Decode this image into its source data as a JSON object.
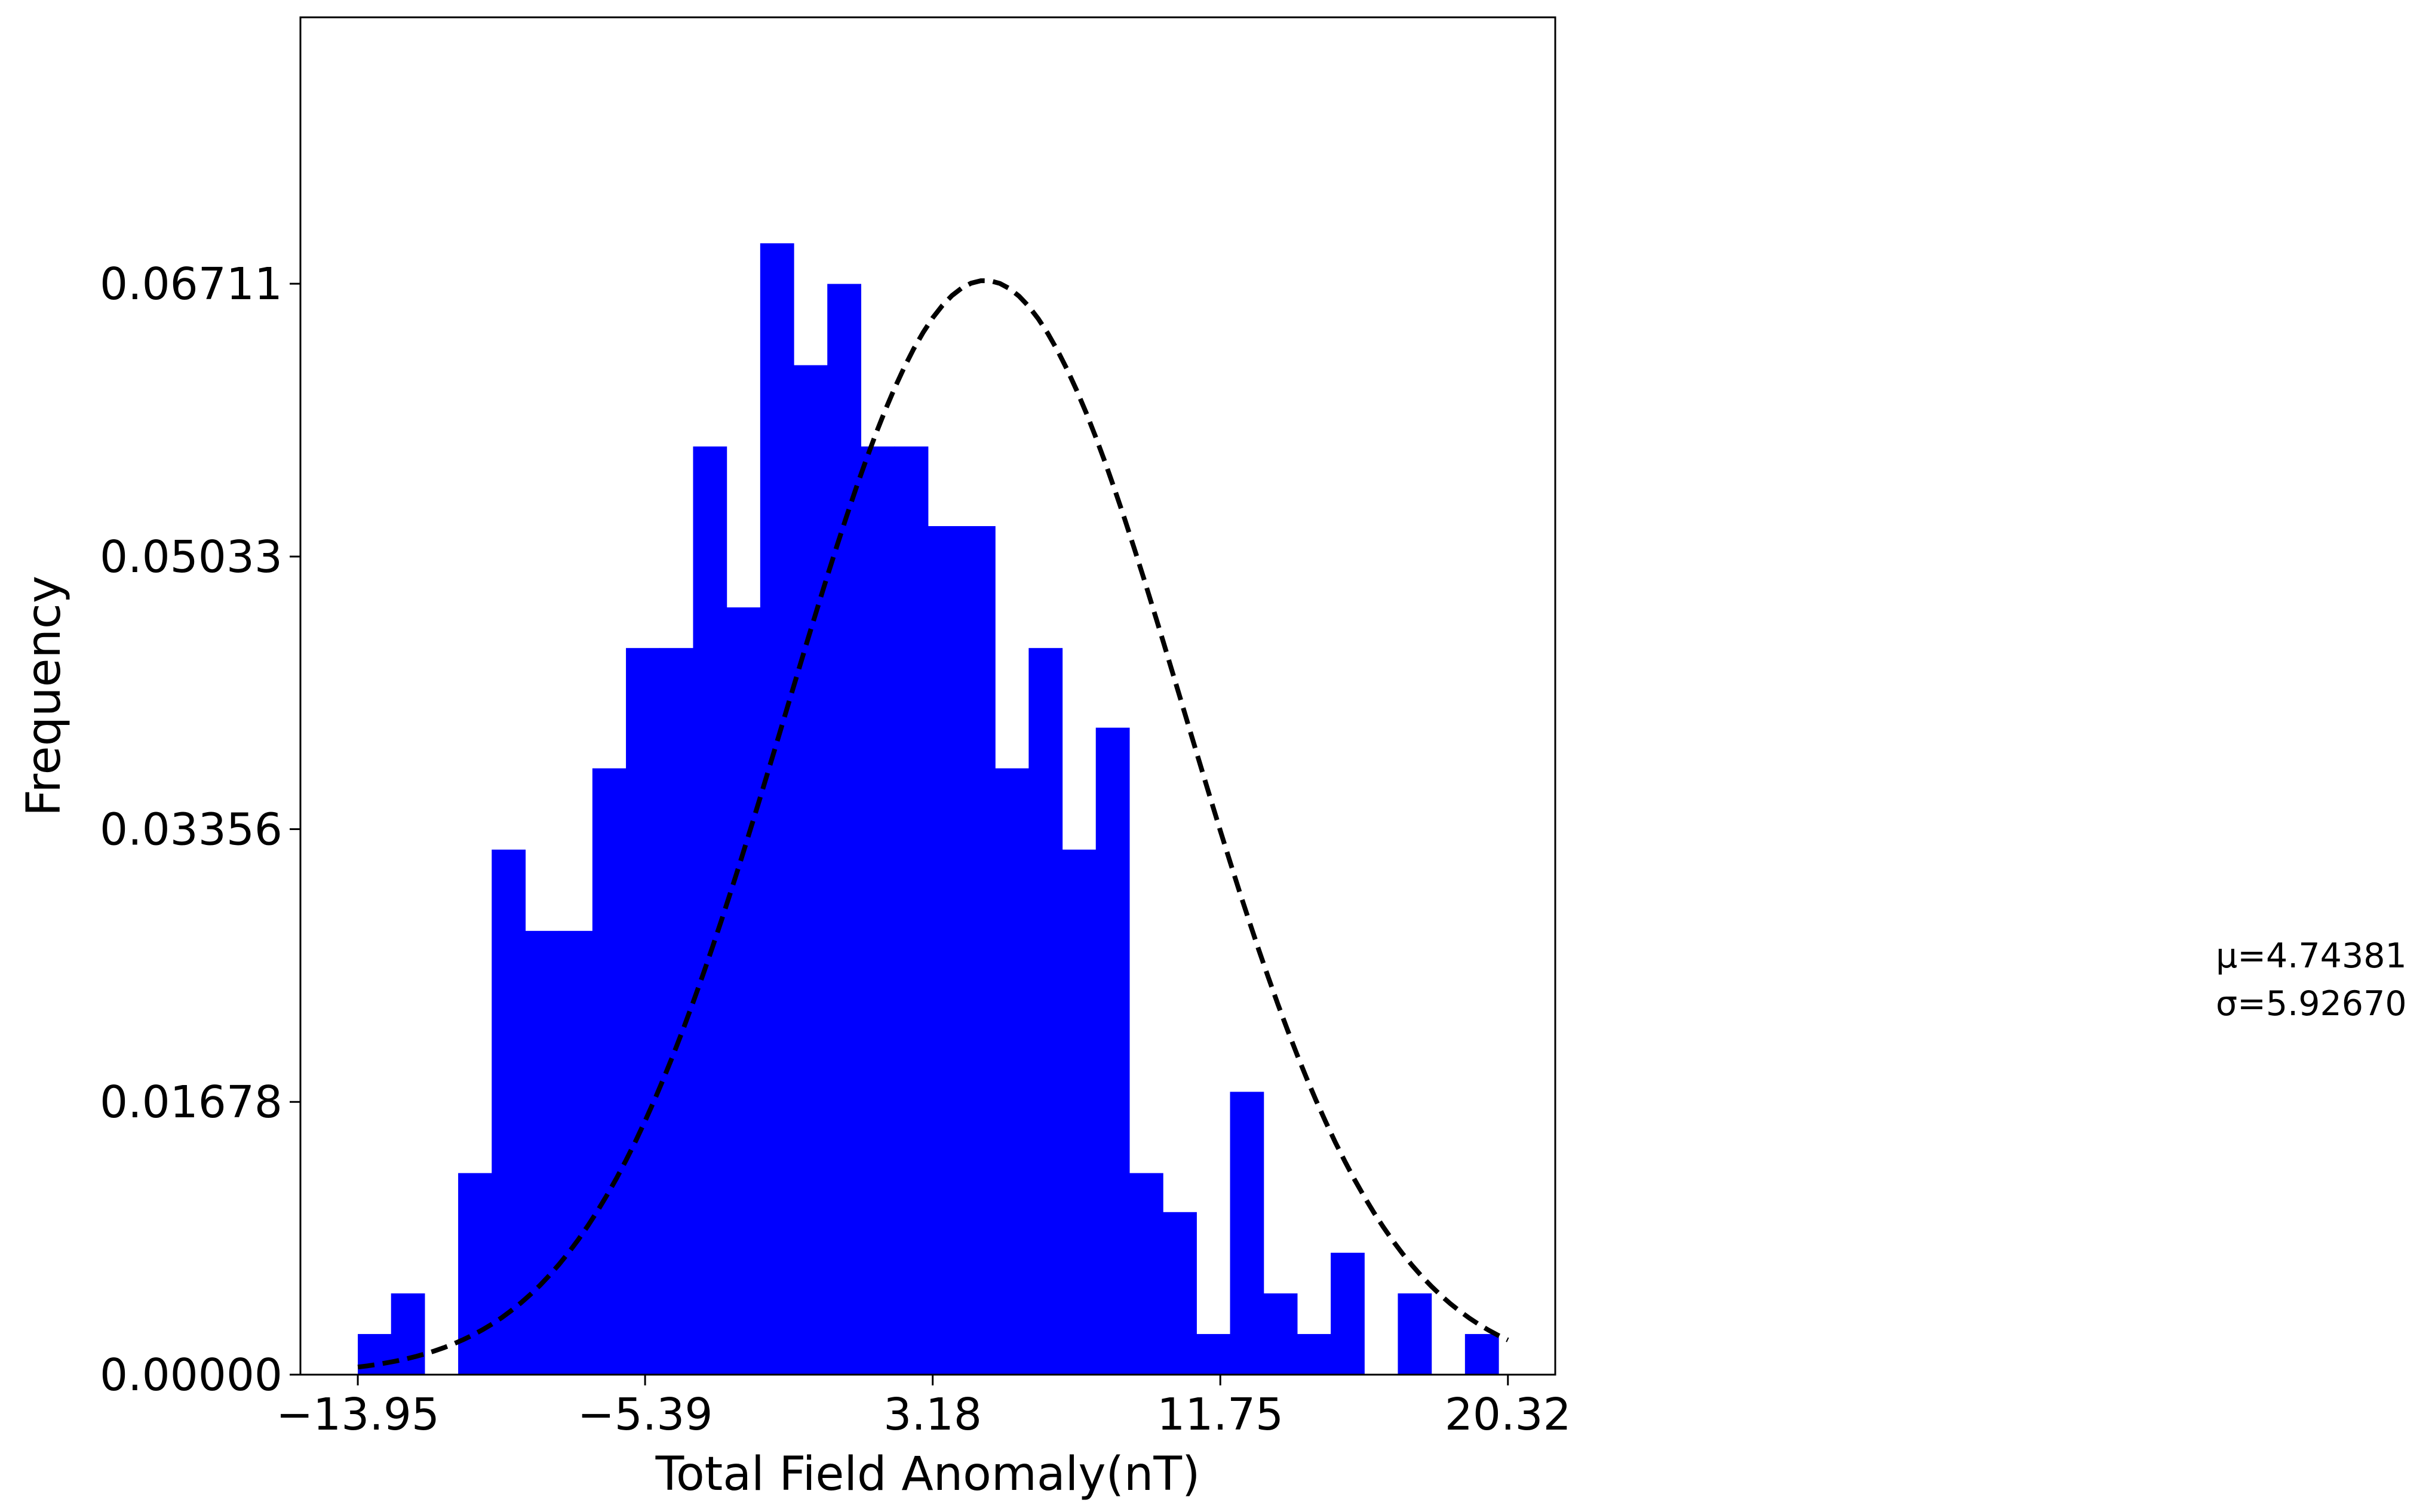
{
  "chart_data": {
    "type": "bar",
    "xlabel": "Total Field Anomaly(nT)",
    "ylabel": "Frequency",
    "xlim": [
      -15.66,
      21.73
    ],
    "ylim": [
      0,
      0.0835
    ],
    "x_ticks": [
      -13.95,
      -5.39,
      3.18,
      11.75,
      20.32
    ],
    "x_tick_labels": [
      "−13.95",
      "−5.39",
      "3.18",
      "11.75",
      "20.32"
    ],
    "y_ticks": [
      0.0,
      0.01678,
      0.03356,
      0.05033,
      0.06711
    ],
    "y_tick_labels": [
      "0.00000",
      "0.01678",
      "0.03356",
      "0.05033",
      "0.06711"
    ],
    "bar_color": "#0000ff",
    "bin_edges": [
      -13.95,
      -12.96,
      -11.96,
      -10.96,
      -9.96,
      -8.96,
      -7.96,
      -6.96,
      -5.96,
      -4.96,
      -3.96,
      -2.96,
      -1.96,
      -0.96,
      0.04,
      1.04,
      2.04,
      3.04,
      4.04,
      5.04,
      6.04,
      7.04,
      8.04,
      9.04,
      10.04,
      11.04,
      12.04,
      13.04,
      14.04,
      15.04,
      16.04,
      17.04,
      18.04,
      19.04,
      20.04
    ],
    "values": [
      0.0025,
      0.005,
      0,
      0.0124,
      0.0323,
      0.0273,
      0.0273,
      0.0373,
      0.0447,
      0.0447,
      0.0571,
      0.0472,
      0.0696,
      0.0621,
      0.0671,
      0.0571,
      0.0571,
      0.0522,
      0.0522,
      0.0373,
      0.0447,
      0.0323,
      0.0398,
      0.0124,
      0.01,
      0.0025,
      0.0174,
      0.005,
      0.0025,
      0.0075,
      0,
      0.005,
      0,
      0.0025
    ],
    "series": [
      {
        "type": "line",
        "style": "dashed",
        "color": "#000000",
        "mu": 4.74381,
        "sigma": 5.9267,
        "x_range": [
          -13.95,
          20.32
        ]
      }
    ],
    "annotations": [
      {
        "text": "μ=4.74381"
      },
      {
        "text": "σ=5.92670"
      }
    ]
  }
}
